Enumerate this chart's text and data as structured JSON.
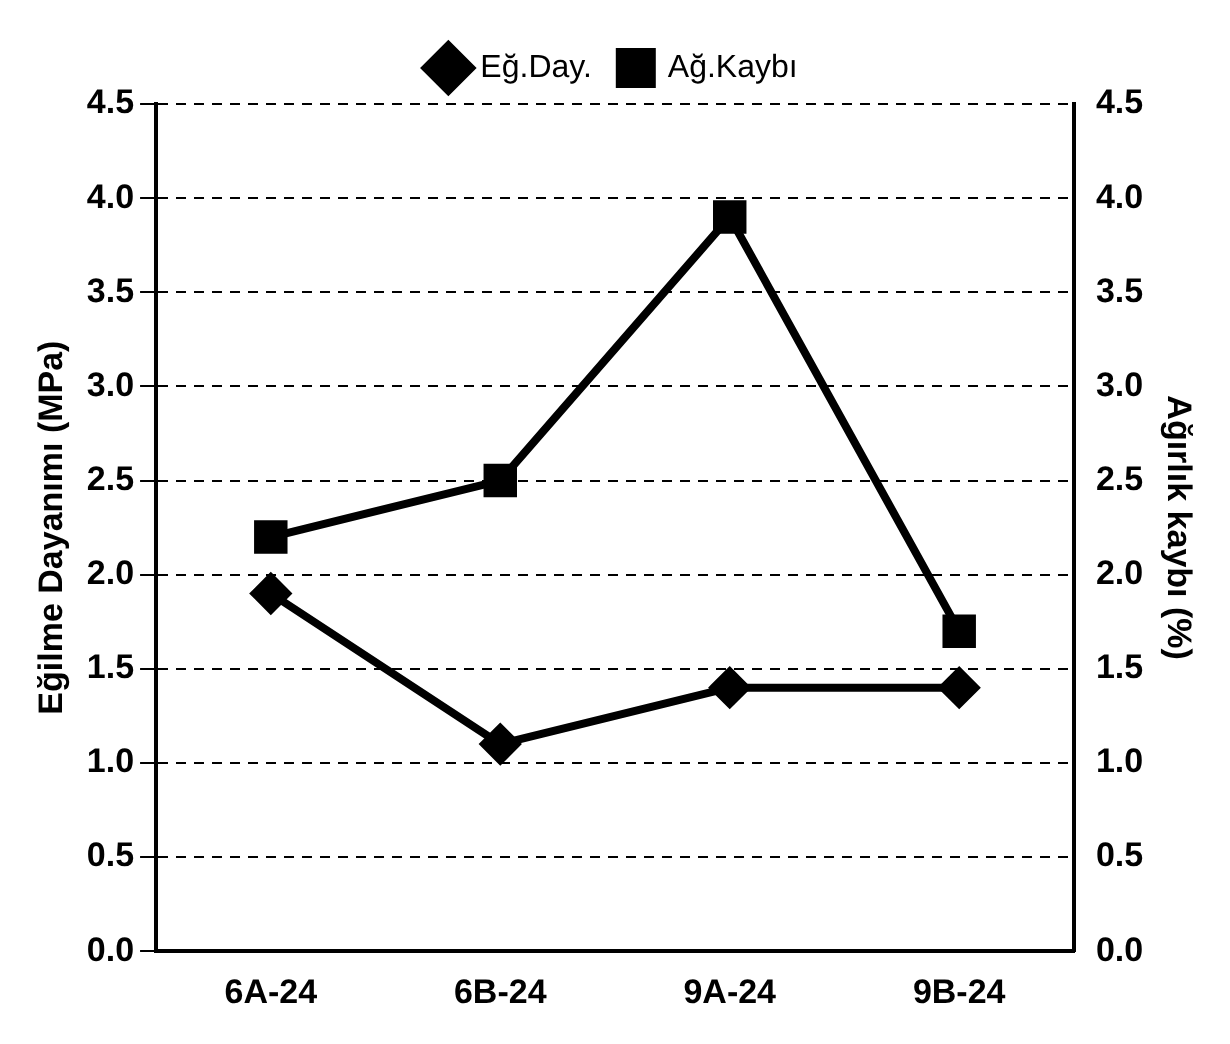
{
  "chart_data": {
    "type": "line",
    "categories": [
      "6A-24",
      "6B-24",
      "9A-24",
      "9B-24"
    ],
    "ylabel": "Eğilme Dayanımı (MPa)",
    "y2label": "Ağırlık kaybı (%)",
    "series": [
      {
        "name": "Eğ.Day.",
        "color": "#000000",
        "marker": "diamond",
        "values": [
          1.9,
          1.1,
          1.4,
          1.4
        ]
      },
      {
        "name": "Ağ.Kaybı",
        "color": "#000000",
        "marker": "square",
        "axis": "y2",
        "values": [
          2.2,
          2.5,
          3.9,
          1.7
        ]
      }
    ],
    "ylim": [
      0,
      4.5
    ],
    "yticks": [
      {
        "value": 0,
        "label": "0.0"
      },
      {
        "value": 0.5,
        "label": "0.5"
      },
      {
        "value": 1,
        "label": "1.0"
      },
      {
        "value": 1.5,
        "label": "1.5"
      },
      {
        "value": 2,
        "label": "2.0"
      },
      {
        "value": 2.5,
        "label": "2.5"
      },
      {
        "value": 3,
        "label": "3.0"
      },
      {
        "value": 3.5,
        "label": "3.5"
      },
      {
        "value": 4,
        "label": "4.0"
      },
      {
        "value": 4.5,
        "label": "4.5"
      }
    ],
    "y2lim": [
      0,
      4.5
    ],
    "y2ticks": [
      {
        "value": 0,
        "label": "0.0"
      },
      {
        "value": 0.5,
        "label": "0.5"
      },
      {
        "value": 1,
        "label": "1.0"
      },
      {
        "value": 1.5,
        "label": "1.5"
      },
      {
        "value": 2,
        "label": "2.0"
      },
      {
        "value": 2.5,
        "label": "2.5"
      },
      {
        "value": 3,
        "label": "3.0"
      },
      {
        "value": 3.5,
        "label": "3.5"
      },
      {
        "value": 4,
        "label": "4.0"
      },
      {
        "value": 4.5,
        "label": "4.5"
      }
    ],
    "grid": "y",
    "legend": "top",
    "line_style": "solid"
  }
}
